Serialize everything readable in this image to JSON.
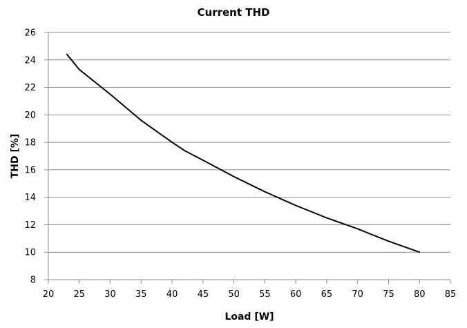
{
  "chart_data": {
    "type": "line",
    "title": "Current THD",
    "xlabel": "Load [W]",
    "ylabel": "THD [%]",
    "xlim": [
      20,
      85
    ],
    "ylim": [
      8,
      26
    ],
    "x_ticks": [
      "20",
      "25",
      "30",
      "35",
      "40",
      "45",
      "50",
      "55",
      "60",
      "65",
      "70",
      "75",
      "80",
      "85"
    ],
    "y_ticks": [
      "8",
      "10",
      "12",
      "14",
      "16",
      "18",
      "20",
      "22",
      "24",
      "26"
    ],
    "grid": "horizontal",
    "legend": "none",
    "series": [
      {
        "color": "#000000",
        "x": [
          23,
          25,
          30,
          35,
          40,
          42,
          45,
          50,
          55,
          60,
          65,
          70,
          75,
          80
        ],
        "y": [
          24.4,
          23.3,
          21.5,
          19.6,
          18.0,
          17.4,
          16.7,
          15.5,
          14.4,
          13.4,
          12.5,
          11.7,
          10.8,
          10.0
        ]
      }
    ]
  }
}
